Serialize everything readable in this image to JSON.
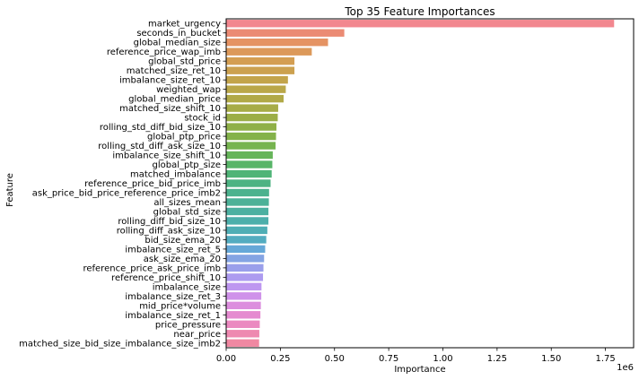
{
  "chart_data": {
    "type": "bar",
    "orientation": "horizontal",
    "title": "Top 35 Feature Importances",
    "xlabel": "Importance",
    "ylabel": "Feature",
    "x_offset_label": "1e6",
    "xlim": [
      0,
      1.88
    ],
    "xticks": [
      0,
      0.25,
      0.5,
      0.75,
      1.0,
      1.25,
      1.5,
      1.75
    ],
    "xtick_labels": [
      "0.00",
      "0.25",
      "0.50",
      "0.75",
      "1.00",
      "1.25",
      "1.50",
      "1.75"
    ],
    "grid": false,
    "categories": [
      "market_urgency",
      "seconds_in_bucket",
      "global_median_size",
      "reference_price_wap_imb",
      "global_std_price",
      "matched_size_ret_10",
      "imbalance_size_ret_10",
      "weighted_wap",
      "global_median_price",
      "matched_size_shift_10",
      "stock_id",
      "rolling_std_diff_bid_size_10",
      "global_ptp_price",
      "rolling_std_diff_ask_size_10",
      "imbalance_size_shift_10",
      "global_ptp_size",
      "matched_imbalance",
      "reference_price_bid_price_imb",
      "ask_price_bid_price_reference_price_imb2",
      "all_sizes_mean",
      "global_std_size",
      "rolling_diff_bid_size_10",
      "rolling_diff_ask_size_10",
      "bid_size_ema_20",
      "imbalance_size_ret_5",
      "ask_size_ema_20",
      "reference_price_ask_price_imb",
      "reference_price_shift_10",
      "imbalance_size",
      "imbalance_size_ret_3",
      "mid_price*volume",
      "imbalance_size_ret_1",
      "price_pressure",
      "near_price",
      "matched_size_bid_size_imbalance_size_imb2"
    ],
    "values": [
      1.79,
      0.545,
      0.47,
      0.395,
      0.315,
      0.315,
      0.285,
      0.275,
      0.265,
      0.24,
      0.238,
      0.232,
      0.23,
      0.228,
      0.215,
      0.213,
      0.21,
      0.205,
      0.198,
      0.197,
      0.195,
      0.195,
      0.19,
      0.185,
      0.18,
      0.175,
      0.172,
      0.17,
      0.163,
      0.162,
      0.16,
      0.158,
      0.155,
      0.153,
      0.152
    ],
    "colors": [
      "#f2878f",
      "#eb8b74",
      "#e59363",
      "#dc995a",
      "#d49e52",
      "#cca14f",
      "#c3a44b",
      "#baa749",
      "#b1a947",
      "#a7ac47",
      "#9cae47",
      "#90b047",
      "#84b24a",
      "#76b44f",
      "#66b55a",
      "#58b568",
      "#4fb477",
      "#4db383",
      "#4cb28e",
      "#4cb198",
      "#4cb0a1",
      "#4dafab",
      "#4faeb5",
      "#53acc0",
      "#66a8d8",
      "#84a4e3",
      "#9a9feb",
      "#ad9bf0",
      "#be97f0",
      "#cf92ea",
      "#dc8ede",
      "#e58bd0",
      "#eb89c0",
      "#ee89b0",
      "#f088a2"
    ]
  }
}
